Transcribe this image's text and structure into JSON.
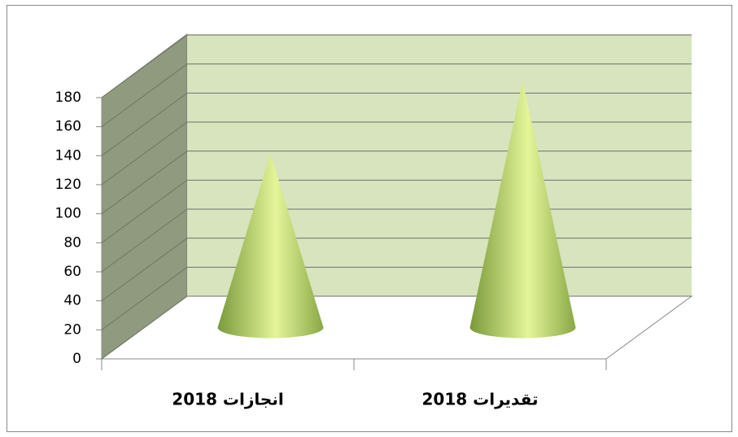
{
  "chart_data": {
    "type": "cone",
    "categories": [
      "انجازات 2018",
      "تقديرات 2018"
    ],
    "values": [
      120,
      170
    ],
    "color": "#9bbb59",
    "ylim": [
      0,
      180
    ],
    "yticks": [
      0,
      20,
      40,
      60,
      80,
      100,
      120,
      140,
      160,
      180
    ],
    "grid": true
  }
}
